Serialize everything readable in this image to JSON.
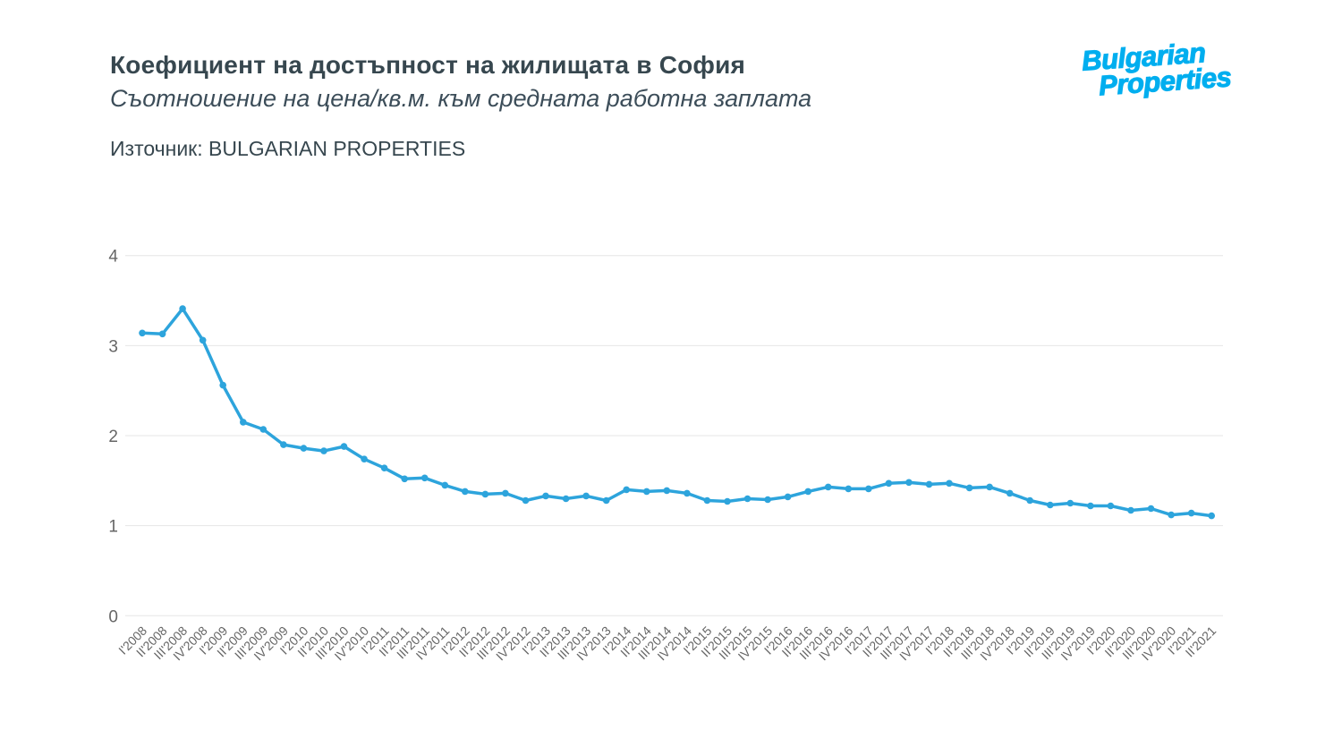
{
  "header": {
    "title": "Коефициент на достъпност на жилищата в София",
    "subtitle": "Съотношение на цена/кв.м. към средната работна заплата",
    "source": "Източник: BULGARIAN PROPERTIES"
  },
  "logo": {
    "line1": "Bulgarian",
    "line2": "Properties",
    "color": "#00aeef"
  },
  "chart_data": {
    "type": "line",
    "title": "Коефициент на достъпност на жилищата в София",
    "subtitle": "Съотношение на цена/кв.м. към средната работна заплата",
    "categories": [
      "I'2008",
      "II'2008",
      "III'2008",
      "IV'2008",
      "I'2009",
      "II'2009",
      "III'2009",
      "IV'2009",
      "I'2010",
      "II'2010",
      "III'2010",
      "IV'2010",
      "I'2011",
      "II'2011",
      "III'2011",
      "IV'2011",
      "I'2012",
      "II'2012",
      "III'2012",
      "IV'2012",
      "I'2013",
      "II'2013",
      "III'2013",
      "IV'2013",
      "I'2014",
      "II'2014",
      "III'2014",
      "IV'2014",
      "I'2015",
      "II'2015",
      "III'2015",
      "IV'2015",
      "I'2016",
      "II'2016",
      "III'2016",
      "IV'2016",
      "I'2017",
      "II'2017",
      "III'2017",
      "IV'2017",
      "I'2018",
      "II'2018",
      "III'2018",
      "IV'2018",
      "I'2019",
      "II'2019",
      "III'2019",
      "IV'2019",
      "I'2020",
      "II'2020",
      "III'2020",
      "IV'2020",
      "I'2021",
      "II'2021"
    ],
    "values": [
      3.14,
      3.13,
      3.41,
      3.06,
      2.56,
      2.15,
      2.07,
      1.9,
      1.86,
      1.83,
      1.88,
      1.74,
      1.64,
      1.52,
      1.53,
      1.45,
      1.38,
      1.35,
      1.36,
      1.28,
      1.33,
      1.3,
      1.33,
      1.28,
      1.4,
      1.38,
      1.39,
      1.36,
      1.28,
      1.27,
      1.3,
      1.29,
      1.32,
      1.38,
      1.43,
      1.41,
      1.41,
      1.47,
      1.48,
      1.46,
      1.47,
      1.42,
      1.43,
      1.36,
      1.28,
      1.23,
      1.25,
      1.22,
      1.22,
      1.17,
      1.19,
      1.12,
      1.14,
      1.11
    ],
    "xlabel": "",
    "ylabel": "",
    "ylim": [
      0,
      4
    ],
    "yticks": [
      0,
      1,
      2,
      3,
      4
    ],
    "grid": "horizontal",
    "legend": "none",
    "marker": "circle",
    "line_color": "#2da4dc",
    "grid_color": "#e6e6e6",
    "axis_label_color": "#666666"
  }
}
